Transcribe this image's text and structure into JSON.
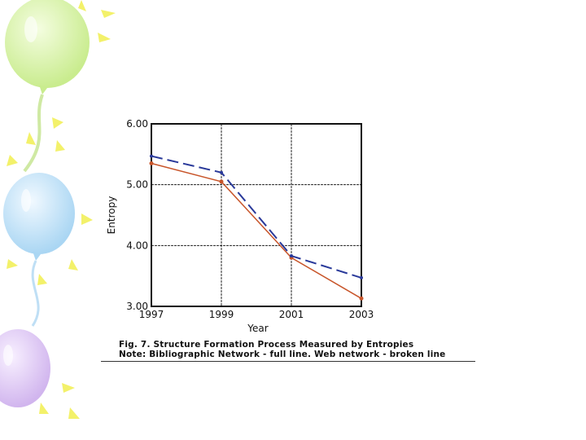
{
  "chart_data": {
    "type": "line",
    "x": [
      1997,
      1999,
      2001,
      2003
    ],
    "x_tick_labels": [
      "1997",
      "1999",
      "2001",
      "2003"
    ],
    "xlim": [
      1997,
      2003
    ],
    "xlabel": "Year",
    "ylabel": "Entropy",
    "ylim": [
      3.0,
      6.0
    ],
    "y_ticks": [
      3.0,
      4.0,
      5.0,
      6.0
    ],
    "y_tick_labels": [
      "3.00",
      "4.00",
      "5.00",
      "6.00"
    ],
    "grid": true,
    "series": [
      {
        "name": "Bibliographic Network",
        "line_style": "solid",
        "color": "#c8552a",
        "values": [
          5.35,
          5.05,
          3.8,
          3.13
        ]
      },
      {
        "name": "Web network",
        "line_style": "dashed",
        "color": "#2a3a9a",
        "values": [
          5.47,
          5.2,
          3.83,
          3.47
        ]
      }
    ]
  },
  "caption": {
    "title": "Fig. 7. Structure Formation Process Measured by Entropies",
    "note": "Note: Bibliographic Network - full line. Web network - broken line"
  },
  "colors": {
    "balloon_green": "#d7f2a8",
    "balloon_blue": "#c6e3f7",
    "balloon_purple": "#dfc9f2",
    "sparkle_yellow": "#f3f16a"
  }
}
